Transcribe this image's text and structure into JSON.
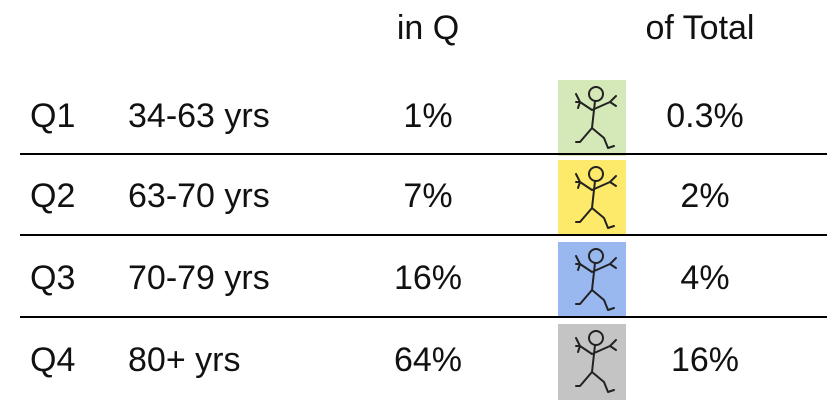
{
  "table": {
    "header": {
      "in_q": "in Q",
      "of_total": "of Total"
    },
    "rows": [
      {
        "quartile": "Q1",
        "age": "34-63 yrs",
        "in_q": "1%",
        "of_total": "0.3%",
        "icon_color": "#d4e8b8"
      },
      {
        "quartile": "Q2",
        "age": "63-70 yrs",
        "in_q": "7%",
        "of_total": "2%",
        "icon_color": "#fde96a"
      },
      {
        "quartile": "Q3",
        "age": "70-79 yrs",
        "in_q": "16%",
        "of_total": "4%",
        "icon_color": "#9ab8f0"
      },
      {
        "quartile": "Q4",
        "age": "80+ yrs",
        "in_q": "64%",
        "of_total": "16%",
        "icon_color": "#c4c4c4"
      }
    ]
  }
}
